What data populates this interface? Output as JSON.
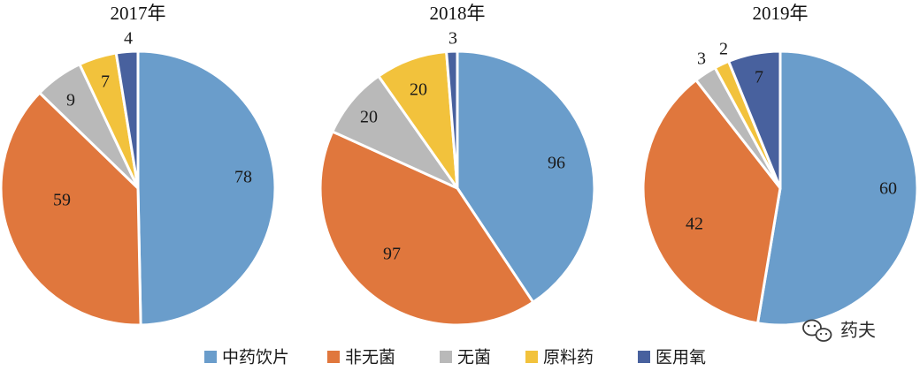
{
  "chart_data": {
    "type": "pie",
    "categories": [
      "中药饮片",
      "非无菌",
      "无菌",
      "原料药",
      "医用氧"
    ],
    "colors": [
      "#6a9dcb",
      "#e0773d",
      "#b9b9b9",
      "#f2c23c",
      "#48619e"
    ],
    "charts": [
      {
        "title": "2017年",
        "values": [
          78,
          59,
          9,
          7,
          4
        ]
      },
      {
        "title": "2018年",
        "values": [
          96,
          97,
          20,
          20,
          3
        ]
      },
      {
        "title": "2019年",
        "values": [
          60,
          42,
          3,
          2,
          7
        ]
      }
    ],
    "legend_position": "bottom"
  },
  "watermark": {
    "text": "药夫"
  }
}
